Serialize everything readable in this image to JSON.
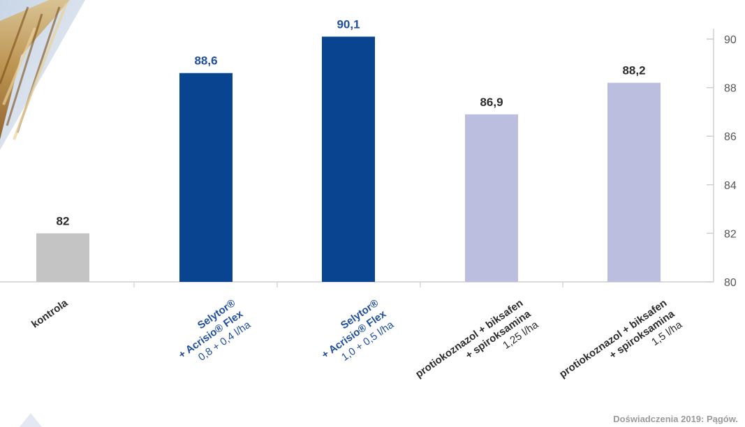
{
  "chart_data": {
    "type": "bar",
    "categories": [
      {
        "lines": [
          {
            "text": "kontrola",
            "weight": "bold"
          }
        ],
        "color": "#2b2b2b"
      },
      {
        "lines": [
          {
            "text": "Selytor®",
            "weight": "bold"
          },
          {
            "text": "+ Acrisio® Flex",
            "weight": "bold"
          },
          {
            "text": "0,8 + 0,4 l/ha",
            "weight": "normal"
          }
        ],
        "color": "#1f4ea1"
      },
      {
        "lines": [
          {
            "text": "Selytor®",
            "weight": "bold"
          },
          {
            "text": "+ Acrisio® Flex",
            "weight": "bold"
          },
          {
            "text": "1,0 + 0,5 l/ha",
            "weight": "normal"
          }
        ],
        "color": "#1f4ea1"
      },
      {
        "lines": [
          {
            "text": "protiokoznazol + biksafen",
            "weight": "bold"
          },
          {
            "text": "+ spiroksamina",
            "weight": "bold"
          },
          {
            "text": "1,25 l/ha",
            "weight": "normal"
          }
        ],
        "color": "#2b2b2b"
      },
      {
        "lines": [
          {
            "text": "protiokoznazol + biksafen",
            "weight": "bold"
          },
          {
            "text": "+ spiroksamina",
            "weight": "bold"
          },
          {
            "text": "1,5 l/ha",
            "weight": "normal"
          }
        ],
        "color": "#2b2b2b"
      }
    ],
    "values": [
      82,
      88.6,
      90.1,
      86.9,
      88.2
    ],
    "value_labels": [
      "82",
      "88,6",
      "90,1",
      "86,9",
      "88,2"
    ],
    "bar_colors": [
      "#c4c4c4",
      "#08448f",
      "#08448f",
      "#bcbee0",
      "#bcbee0"
    ],
    "label_colors": [
      "#2b2b2b",
      "#1f4ea1",
      "#1f4ea1",
      "#2b2b2b",
      "#2b2b2b"
    ],
    "ylim": [
      80,
      90
    ],
    "yticks": [
      80,
      82,
      84,
      86,
      88,
      90
    ],
    "yaxis_side": "right",
    "grid": false
  },
  "source_note": "Doświadczenia 2019: Pągów."
}
